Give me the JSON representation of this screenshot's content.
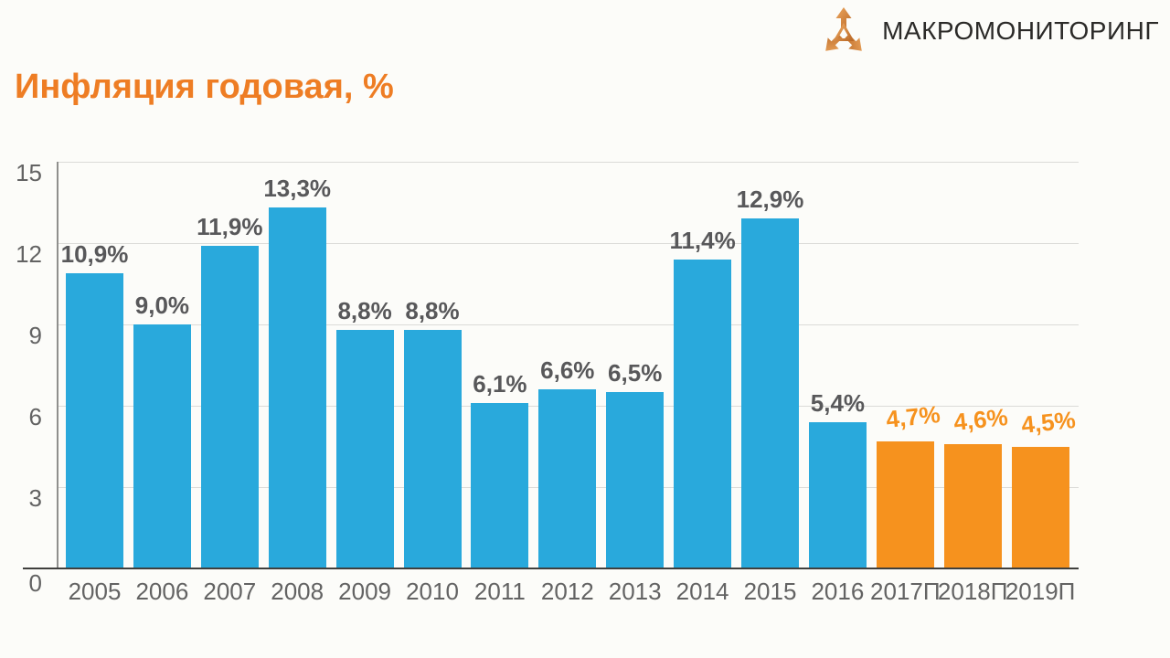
{
  "logo": {
    "text": "МАКРОМОНИТОРИНГ",
    "icon": "triple-arrow-logo-icon"
  },
  "title": "Инфляция годовая, %",
  "colors": {
    "background": "#FCFCF9",
    "actual_bar": "#29A9DC",
    "forecast_bar": "#F6921E",
    "title": "#EE7D24",
    "data_label": "#58585A",
    "forecast_label": "#F6921E",
    "axis_label": "#636363",
    "gridline": "#DBDBD8",
    "y_axis_line": "#8F8F8D",
    "baseline": "#3F3F3D",
    "logo_text": "#2B2A28"
  },
  "chart_data": {
    "type": "bar",
    "title": "Инфляция годовая, %",
    "xlabel": "",
    "ylabel": "",
    "categories": [
      "2005",
      "2006",
      "2007",
      "2008",
      "2009",
      "2010",
      "2011",
      "2012",
      "2013",
      "2014",
      "2015",
      "2016",
      "2017П",
      "2018П",
      "2019П"
    ],
    "values": [
      10.9,
      9.0,
      11.9,
      13.3,
      8.8,
      8.8,
      6.1,
      6.6,
      6.5,
      11.4,
      12.9,
      5.4,
      4.7,
      4.6,
      4.5
    ],
    "labels": [
      "10,9%",
      "9,0%",
      "11,9%",
      "13,3%",
      "8,8%",
      "8,8%",
      "6,1%",
      "6,6%",
      "6,5%",
      "11,4%",
      "12,9%",
      "5,4%",
      "4,7%",
      "4,6%",
      "4,5%"
    ],
    "series_split": {
      "actual_categories_count": 12,
      "forecast_categories_count": 3,
      "forecast_from_index": 12
    },
    "ylim": [
      0,
      15
    ],
    "yticks": [
      0,
      3,
      6,
      9,
      12,
      15
    ],
    "grid": true,
    "legend": "none"
  }
}
